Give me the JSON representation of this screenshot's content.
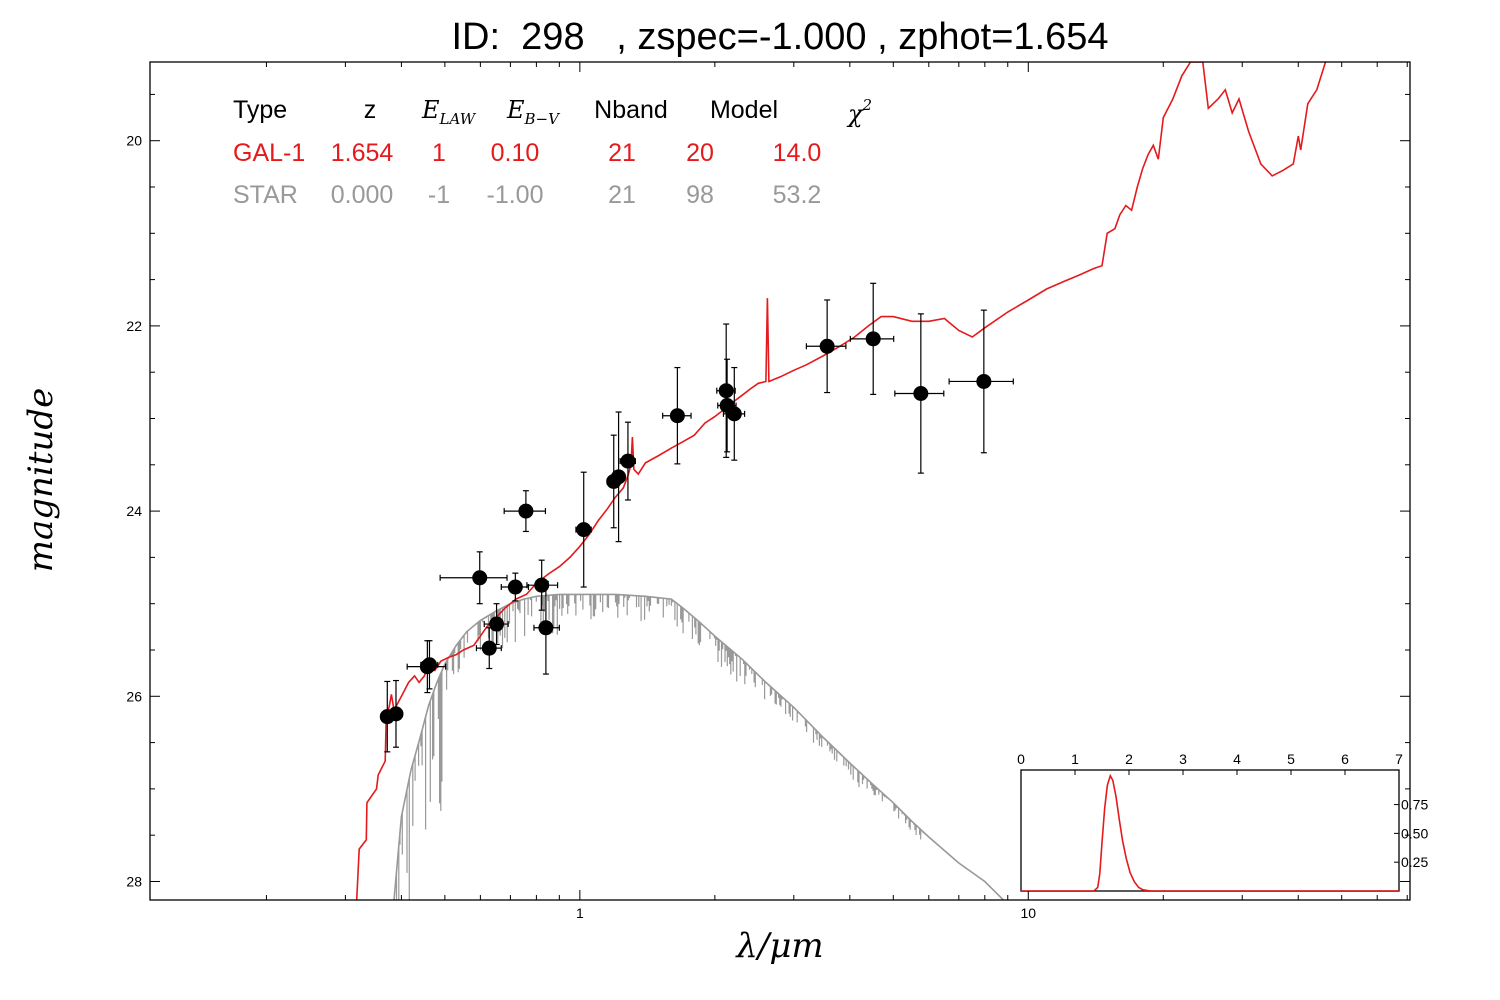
{
  "title": "ID:  298   , zspec=-1.000 , zphot=1.654",
  "chart_data": {
    "type": "scatter",
    "xlabel": "λ/μm",
    "ylabel": "magnitude",
    "xscale": "log",
    "xlim": [
      0.11,
      71
    ],
    "ylim": [
      28.2,
      19.15
    ],
    "xticks": [
      {
        "v": 1,
        "label": "1"
      },
      {
        "v": 10,
        "label": "10"
      }
    ],
    "yticks": [
      {
        "v": 20,
        "label": "20"
      },
      {
        "v": 22,
        "label": "22"
      },
      {
        "v": 24,
        "label": "24"
      },
      {
        "v": 26,
        "label": "26"
      },
      {
        "v": 28,
        "label": "28"
      }
    ],
    "colors": {
      "galaxy": "#e41a1c",
      "star": "#999999",
      "points": "#000000"
    },
    "legend": {
      "headers": {
        "type": "Type",
        "z": "z",
        "elaw": "E",
        "elaw_sub": "LAW",
        "ebv": "E",
        "ebv_sub": "B−V",
        "nband": "Nband",
        "model": "Model",
        "chi2": "χ",
        "chi2_sup": "2"
      },
      "rows": [
        {
          "type": "GAL-1",
          "z": "1.654",
          "elaw": "1",
          "ebv": "0.10",
          "nband": "21",
          "model": "20",
          "chi2": "14.0",
          "color": "#e41a1c"
        },
        {
          "type": "STAR",
          "z": "0.000",
          "elaw": "-1",
          "ebv": "-1.00",
          "nband": "21",
          "model": "98",
          "chi2": "53.2",
          "color": "#999999"
        }
      ]
    },
    "photometry": [
      {
        "x": 0.372,
        "y": 26.22,
        "xerr": [
          0.012,
          0.012
        ],
        "yerr": 0.38
      },
      {
        "x": 0.389,
        "y": 26.19,
        "xerr": [
          0.013,
          0.013
        ],
        "yerr": 0.36
      },
      {
        "x": 0.457,
        "y": 25.68,
        "xerr": [
          0.045,
          0.045
        ],
        "yerr": 0.28
      },
      {
        "x": 0.462,
        "y": 25.66,
        "xerr": [
          0.02,
          0.02
        ],
        "yerr": 0.26
      },
      {
        "x": 0.598,
        "y": 24.72,
        "xerr": [
          0.11,
          0.09
        ],
        "yerr": 0.28
      },
      {
        "x": 0.628,
        "y": 25.48,
        "xerr": [
          0.04,
          0.04
        ],
        "yerr": 0.22
      },
      {
        "x": 0.652,
        "y": 25.22,
        "xerr": [
          0.04,
          0.04
        ],
        "yerr": 0.22
      },
      {
        "x": 0.718,
        "y": 24.82,
        "xerr": [
          0.05,
          0.05
        ],
        "yerr": 0.15
      },
      {
        "x": 0.758,
        "y": 24.0,
        "xerr": [
          0.08,
          0.08
        ],
        "yerr": 0.22
      },
      {
        "x": 0.822,
        "y": 24.8,
        "xerr": [
          0.06,
          0.07
        ],
        "yerr": 0.27
      },
      {
        "x": 0.84,
        "y": 25.26,
        "xerr": [
          0.05,
          0.06
        ],
        "yerr": 0.5
      },
      {
        "x": 1.02,
        "y": 24.2,
        "xerr": [
          0.04,
          0.04
        ],
        "yerr": 0.62
      },
      {
        "x": 1.19,
        "y": 23.68,
        "xerr": [
          0.04,
          0.04
        ],
        "yerr": 0.5
      },
      {
        "x": 1.22,
        "y": 23.63,
        "xerr": [
          0.04,
          0.04
        ],
        "yerr": 0.7
      },
      {
        "x": 1.28,
        "y": 23.46,
        "xerr": [
          0.05,
          0.05
        ],
        "yerr": 0.42
      },
      {
        "x": 1.65,
        "y": 22.97,
        "xerr": [
          0.12,
          0.12
        ],
        "yerr": 0.52
      },
      {
        "x": 2.12,
        "y": 22.7,
        "xerr": [
          0.1,
          0.1
        ],
        "yerr": 0.72
      },
      {
        "x": 2.13,
        "y": 22.86,
        "xerr": [
          0.1,
          0.1
        ],
        "yerr": 0.5
      },
      {
        "x": 2.21,
        "y": 22.95,
        "xerr": [
          0.12,
          0.12
        ],
        "yerr": 0.5
      },
      {
        "x": 3.56,
        "y": 22.22,
        "xerr": [
          0.36,
          0.36
        ],
        "yerr": 0.5
      },
      {
        "x": 4.51,
        "y": 22.14,
        "xerr": [
          0.5,
          0.5
        ],
        "yerr": 0.6
      },
      {
        "x": 5.76,
        "y": 22.73,
        "xerr": [
          0.72,
          0.72
        ],
        "yerr": 0.86
      },
      {
        "x": 7.96,
        "y": 22.6,
        "xerr": [
          1.3,
          1.3
        ],
        "yerr": 0.77
      }
    ],
    "galaxy_model": [
      [
        0.318,
        28.2
      ],
      [
        0.322,
        27.65
      ],
      [
        0.334,
        27.55
      ],
      [
        0.335,
        27.15
      ],
      [
        0.352,
        27.0
      ],
      [
        0.355,
        26.85
      ],
      [
        0.368,
        26.7
      ],
      [
        0.37,
        26.25
      ],
      [
        0.376,
        26.1
      ],
      [
        0.38,
        25.98
      ],
      [
        0.385,
        26.15
      ],
      [
        0.395,
        26.05
      ],
      [
        0.405,
        25.95
      ],
      [
        0.415,
        25.85
      ],
      [
        0.428,
        25.78
      ],
      [
        0.438,
        25.85
      ],
      [
        0.45,
        25.78
      ],
      [
        0.46,
        25.65
      ],
      [
        0.475,
        25.72
      ],
      [
        0.49,
        25.62
      ],
      [
        0.51,
        25.58
      ],
      [
        0.53,
        25.55
      ],
      [
        0.55,
        25.5
      ],
      [
        0.58,
        25.45
      ],
      [
        0.6,
        25.35
      ],
      [
        0.62,
        25.25
      ],
      [
        0.65,
        25.15
      ],
      [
        0.68,
        25.05
      ],
      [
        0.72,
        24.95
      ],
      [
        0.76,
        24.9
      ],
      [
        0.8,
        24.78
      ],
      [
        0.85,
        24.68
      ],
      [
        0.9,
        24.6
      ],
      [
        0.95,
        24.5
      ],
      [
        1.0,
        24.38
      ],
      [
        1.05,
        24.25
      ],
      [
        1.1,
        24.1
      ],
      [
        1.15,
        23.98
      ],
      [
        1.2,
        23.85
      ],
      [
        1.25,
        23.75
      ],
      [
        1.28,
        23.62
      ],
      [
        1.3,
        23.5
      ],
      [
        1.31,
        23.2
      ],
      [
        1.32,
        23.55
      ],
      [
        1.35,
        23.6
      ],
      [
        1.4,
        23.48
      ],
      [
        1.5,
        23.4
      ],
      [
        1.6,
        23.32
      ],
      [
        1.7,
        23.25
      ],
      [
        1.8,
        23.18
      ],
      [
        1.9,
        23.05
      ],
      [
        2.0,
        22.98
      ],
      [
        2.1,
        22.9
      ],
      [
        2.2,
        22.82
      ],
      [
        2.3,
        22.75
      ],
      [
        2.4,
        22.68
      ],
      [
        2.5,
        22.62
      ],
      [
        2.6,
        22.6
      ],
      [
        2.62,
        21.7
      ],
      [
        2.64,
        22.6
      ],
      [
        2.8,
        22.55
      ],
      [
        3.0,
        22.48
      ],
      [
        3.2,
        22.42
      ],
      [
        3.5,
        22.32
      ],
      [
        3.8,
        22.22
      ],
      [
        4.1,
        22.12
      ],
      [
        4.4,
        22.0
      ],
      [
        4.7,
        21.9
      ],
      [
        5.0,
        21.9
      ],
      [
        5.5,
        21.95
      ],
      [
        6.0,
        21.95
      ],
      [
        6.5,
        21.92
      ],
      [
        7.0,
        22.05
      ],
      [
        7.5,
        22.12
      ],
      [
        8.0,
        22.02
      ],
      [
        9.0,
        21.85
      ],
      [
        10.0,
        21.72
      ],
      [
        11.0,
        21.6
      ],
      [
        12.0,
        21.52
      ],
      [
        13.0,
        21.45
      ],
      [
        14.0,
        21.38
      ],
      [
        14.6,
        21.35
      ],
      [
        15.0,
        21.0
      ],
      [
        15.6,
        20.95
      ],
      [
        16.0,
        20.8
      ],
      [
        16.5,
        20.7
      ],
      [
        17.0,
        20.75
      ],
      [
        17.5,
        20.5
      ],
      [
        18.0,
        20.3
      ],
      [
        18.5,
        20.15
      ],
      [
        19.0,
        20.05
      ],
      [
        19.5,
        20.2
      ],
      [
        20.0,
        19.75
      ],
      [
        21.0,
        19.55
      ],
      [
        22.0,
        19.3
      ],
      [
        23.0,
        19.15
      ],
      [
        24.5,
        19.15
      ],
      [
        25.2,
        19.65
      ],
      [
        26.5,
        19.55
      ],
      [
        27.5,
        19.45
      ],
      [
        28.5,
        19.7
      ],
      [
        29.5,
        19.55
      ],
      [
        31.0,
        19.9
      ],
      [
        33.0,
        20.25
      ],
      [
        35.0,
        20.38
      ],
      [
        37.0,
        20.32
      ],
      [
        39.0,
        20.25
      ],
      [
        40.0,
        19.95
      ],
      [
        40.5,
        20.1
      ],
      [
        42.0,
        19.6
      ],
      [
        44.0,
        19.45
      ],
      [
        46.0,
        19.15
      ]
    ],
    "star_model": [
      [
        0.385,
        28.2
      ],
      [
        0.4,
        27.3
      ],
      [
        0.42,
        26.8
      ],
      [
        0.44,
        26.45
      ],
      [
        0.46,
        26.1
      ],
      [
        0.48,
        25.85
      ],
      [
        0.5,
        25.65
      ],
      [
        0.53,
        25.45
      ],
      [
        0.56,
        25.3
      ],
      [
        0.6,
        25.18
      ],
      [
        0.65,
        25.08
      ],
      [
        0.7,
        25.0
      ],
      [
        0.75,
        24.95
      ],
      [
        0.8,
        24.92
      ],
      [
        0.9,
        24.9
      ],
      [
        1.0,
        24.9
      ],
      [
        1.2,
        24.9
      ],
      [
        1.4,
        24.92
      ],
      [
        1.6,
        24.95
      ],
      [
        1.7,
        25.05
      ],
      [
        1.85,
        25.2
      ],
      [
        2.0,
        25.35
      ],
      [
        2.3,
        25.6
      ],
      [
        2.6,
        25.85
      ],
      [
        3.0,
        26.12
      ],
      [
        3.5,
        26.45
      ],
      [
        4.0,
        26.72
      ],
      [
        4.5,
        26.95
      ],
      [
        5.0,
        27.15
      ],
      [
        5.5,
        27.35
      ],
      [
        6.0,
        27.52
      ],
      [
        7.0,
        27.8
      ],
      [
        8.0,
        28.0
      ],
      [
        8.8,
        28.2
      ]
    ],
    "inset": {
      "xlim": [
        0,
        7
      ],
      "xticks": [
        "0",
        "1",
        "2",
        "3",
        "4",
        "5",
        "6",
        "7"
      ],
      "yticks": [
        "0.25",
        "0.50",
        "0.75"
      ],
      "ylim": [
        0,
        1.05
      ],
      "pdf": [
        [
          0,
          0
        ],
        [
          1.35,
          0
        ],
        [
          1.42,
          0.03
        ],
        [
          1.46,
          0.15
        ],
        [
          1.5,
          0.42
        ],
        [
          1.55,
          0.72
        ],
        [
          1.6,
          0.92
        ],
        [
          1.654,
          1.0
        ],
        [
          1.7,
          0.96
        ],
        [
          1.76,
          0.82
        ],
        [
          1.82,
          0.62
        ],
        [
          1.88,
          0.44
        ],
        [
          1.95,
          0.28
        ],
        [
          2.02,
          0.16
        ],
        [
          2.1,
          0.08
        ],
        [
          2.18,
          0.03
        ],
        [
          2.26,
          0.01
        ],
        [
          2.4,
          0
        ],
        [
          7.0,
          0
        ]
      ]
    }
  }
}
